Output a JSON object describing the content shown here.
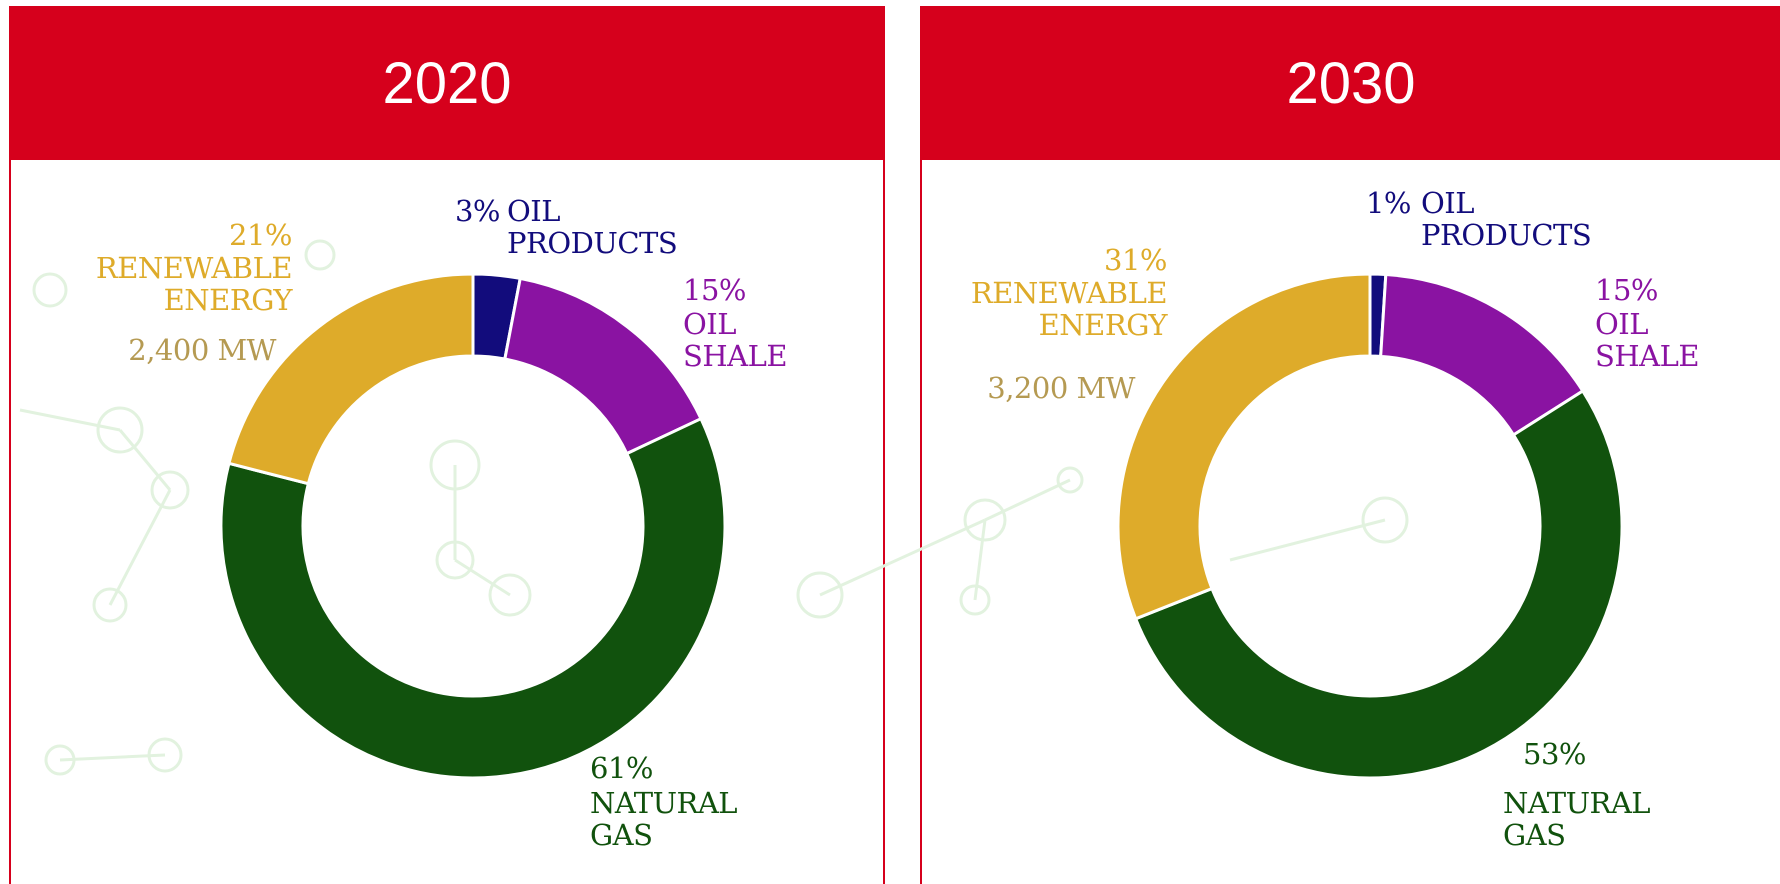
{
  "chart_data": [
    {
      "type": "pie",
      "title": "2020",
      "categories": [
        "OIL PRODUCTS",
        "OIL SHALE",
        "NATURAL GAS",
        "RENEWABLE ENERGY"
      ],
      "values": [
        3,
        15,
        61,
        21
      ],
      "value_labels": [
        "3%",
        "15%",
        "61%",
        "21%"
      ],
      "colors": [
        "#120c7c",
        "#8a13a2",
        "#11520d",
        "#deab2a"
      ],
      "annotations": [
        {
          "text": "2,400 MW",
          "category": "RENEWABLE ENERGY"
        }
      ]
    },
    {
      "type": "pie",
      "title": "2030",
      "categories": [
        "OIL PRODUCTS",
        "OIL SHALE",
        "NATURAL GAS",
        "RENEWABLE ENERGY"
      ],
      "values": [
        1,
        15,
        53,
        31
      ],
      "value_labels": [
        "1%",
        "15%",
        "53%",
        "31%"
      ],
      "colors": [
        "#120c7c",
        "#8a13a2",
        "#11520d",
        "#deab2a"
      ],
      "annotations": [
        {
          "text": "3,200 MW",
          "category": "RENEWABLE ENERGY"
        }
      ]
    }
  ]
}
